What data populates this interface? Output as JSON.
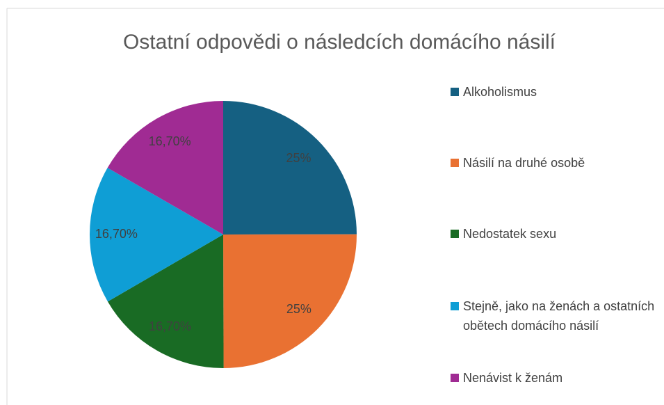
{
  "chart_data": {
    "type": "pie",
    "title": "Ostatní odpovědi o následcích domácího násilí",
    "categories": [
      "Alkoholismus",
      "Násilí na druhé osobě",
      "Nedostatek sexu",
      "Stejně, jako na ženách a ostatních obětech domácího násilí",
      "Nenávist k ženám"
    ],
    "values": [
      25,
      25,
      16.7,
      16.7,
      16.7
    ],
    "value_labels": [
      "25%",
      "25%",
      "16,70%",
      "16,70%",
      "16,70%"
    ],
    "colors": [
      "#156082",
      "#e97132",
      "#196b24",
      "#0f9ed5",
      "#a02b93"
    ],
    "legend": "right"
  }
}
